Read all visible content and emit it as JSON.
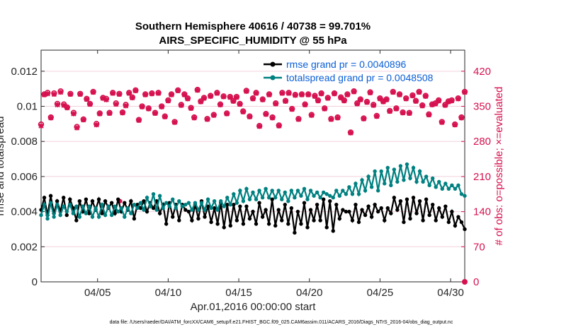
{
  "chart_data": {
    "type": "line",
    "title": "Southern Hemisphere 40616 / 40738 = 99.701%",
    "subtitle": "AIRS_SPECIFIC_HUMIDITY @ 55 hPa",
    "xlabel": "Apr.01,2016 00:00:00 start",
    "ylabel": "rmse and totalspread",
    "y2label": "# of obs: o=possible; ×=evaluated",
    "xlim": [
      1,
      31
    ],
    "ylim": [
      0,
      0.0132
    ],
    "y2lim": [
      0,
      462
    ],
    "x_tick_values": [
      5,
      10,
      15,
      20,
      25,
      30
    ],
    "x_tick_labels": [
      "04/05",
      "04/10",
      "04/15",
      "04/20",
      "04/25",
      "04/30"
    ],
    "y_ticks": [
      0,
      0.002,
      0.004,
      0.006,
      0.008,
      0.01,
      0.012
    ],
    "y_tick_labels": [
      "0",
      "0.002",
      "0.004",
      "0.006",
      "0.008",
      "0.01",
      "0.012"
    ],
    "y2_ticks": [
      0,
      70,
      140,
      210,
      280,
      350,
      420
    ],
    "y2_tick_labels": [
      "0",
      "70",
      "140",
      "210",
      "280",
      "350",
      "420"
    ],
    "grid": true,
    "legend_position": "top-right",
    "series": [
      {
        "name": "rmse grand pr = 0.0040896",
        "color": "#000000",
        "values": [
          0.0041,
          0.0048,
          0.0038,
          0.0049,
          0.0039,
          0.0046,
          0.004,
          0.0048,
          0.0038,
          0.0047,
          0.0042,
          0.0035,
          0.0046,
          0.004,
          0.0047,
          0.0039,
          0.0046,
          0.0041,
          0.0047,
          0.0039,
          0.0046,
          0.0042,
          0.0045,
          0.0039,
          0.0047,
          0.004,
          0.0045,
          0.0041,
          0.0046,
          0.0036,
          0.0044,
          0.0042,
          0.0046,
          0.004,
          0.0045,
          0.0042,
          0.0046,
          0.0039,
          0.0044,
          0.0033,
          0.0045,
          0.0037,
          0.0044,
          0.0035,
          0.0044,
          0.0041,
          0.004,
          0.0035,
          0.0044,
          0.0036,
          0.0046,
          0.0037,
          0.0043,
          0.0034,
          0.0042,
          0.0033,
          0.0045,
          0.0031,
          0.0044,
          0.0032,
          0.0044,
          0.0035,
          0.0043,
          0.0033,
          0.0043,
          0.0036,
          0.004,
          0.0033,
          0.0045,
          0.0037,
          0.0041,
          0.0033,
          0.0047,
          0.0032,
          0.0041,
          0.0035,
          0.0044,
          0.0033,
          0.0042,
          0.0028,
          0.004,
          0.0033,
          0.0045,
          0.0031,
          0.0041,
          0.0035,
          0.0044,
          0.0035,
          0.0047,
          0.0031,
          0.0046,
          0.0029,
          0.0044,
          0.0036,
          0.0041,
          0.004,
          0.004,
          0.0035,
          0.0044,
          0.0034,
          0.0041,
          0.0038,
          0.0043,
          0.0037,
          0.0044,
          0.004,
          0.0042,
          0.0035,
          0.0042,
          0.0039,
          0.0048,
          0.0041,
          0.0046,
          0.0034,
          0.0047,
          0.0036,
          0.0048,
          0.0039,
          0.0046,
          0.0035,
          0.0047,
          0.0038,
          0.0044,
          0.0035,
          0.0042,
          0.0037,
          0.0043,
          0.0034,
          0.004,
          0.0032,
          0.0037,
          0.0034,
          0.003
        ]
      },
      {
        "name": "totalspread grand pr = 0.0048508",
        "color": "#008080",
        "values": [
          0.0038,
          0.0044,
          0.0036,
          0.0045,
          0.0037,
          0.0044,
          0.0038,
          0.0043,
          0.004,
          0.0044,
          0.0039,
          0.0043,
          0.0037,
          0.0043,
          0.0039,
          0.0043,
          0.0037,
          0.0042,
          0.0037,
          0.0044,
          0.0038,
          0.0043,
          0.0038,
          0.0043,
          0.004,
          0.0042,
          0.0037,
          0.0042,
          0.0039,
          0.0044,
          0.0042,
          0.0045,
          0.0041,
          0.0048,
          0.0043,
          0.005,
          0.0041,
          0.0049,
          0.0042,
          0.0045,
          0.0043,
          0.0047,
          0.0042,
          0.0046,
          0.0043,
          0.0044,
          0.0045,
          0.0041,
          0.0045,
          0.0041,
          0.0045,
          0.0041,
          0.0047,
          0.0042,
          0.0046,
          0.0041,
          0.0046,
          0.0043,
          0.0048,
          0.0044,
          0.005,
          0.0045,
          0.0052,
          0.0046,
          0.0053,
          0.0047,
          0.0051,
          0.0047,
          0.0052,
          0.0048,
          0.0053,
          0.0048,
          0.0052,
          0.0048,
          0.0052,
          0.0047,
          0.0051,
          0.0046,
          0.0052,
          0.0048,
          0.0052,
          0.0049,
          0.0053,
          0.0047,
          0.0052,
          0.0049,
          0.0051,
          0.0048,
          0.0051,
          0.005,
          0.0049,
          0.0048,
          0.0052,
          0.0049,
          0.0052,
          0.005,
          0.0054,
          0.005,
          0.0056,
          0.005,
          0.0058,
          0.0052,
          0.006,
          0.0054,
          0.0063,
          0.0052,
          0.0063,
          0.0056,
          0.0065,
          0.0055,
          0.0064,
          0.0057,
          0.0066,
          0.0058,
          0.0067,
          0.0059,
          0.0065,
          0.0057,
          0.0063,
          0.0057,
          0.006,
          0.0055,
          0.0059,
          0.0054,
          0.0057,
          0.0053,
          0.0056,
          0.0053,
          0.0055,
          0.0053,
          0.0055,
          0.005,
          0.0049
        ]
      }
    ],
    "obs_counts": {
      "color": "#d6114f",
      "axis": "right",
      "possible": [
        314,
        374,
        377,
        328,
        376,
        355,
        380,
        354,
        348,
        375,
        337,
        309,
        375,
        324,
        365,
        355,
        379,
        315,
        336,
        367,
        365,
        337,
        377,
        356,
        375,
        338,
        353,
        377,
        368,
        382,
        323,
        350,
        374,
        346,
        376,
        337,
        377,
        350,
        330,
        362,
        374,
        319,
        382,
        353,
        374,
        366,
        347,
        328,
        383,
        360,
        367,
        325,
        371,
        333,
        377,
        354,
        370,
        336,
        369,
        361,
        369,
        355,
        340,
        381,
        330,
        366,
        377,
        311,
        364,
        335,
        374,
        328,
        356,
        312,
        377,
        361,
        377,
        345,
        373,
        325,
        374,
        354,
        374,
        333,
        371,
        362,
        376,
        346,
        367,
        325,
        376,
        328,
        368,
        362,
        374,
        298,
        380,
        356,
        364,
        326,
        359,
        378,
        353,
        331,
        366,
        360,
        364,
        341,
        379,
        346,
        374,
        338,
        366,
        337,
        372,
        361,
        379,
        352,
        371,
        334,
        354,
        356,
        362,
        319,
        353,
        360,
        362,
        314,
        366,
        328,
        379
      ],
      "evaluated": [
        311,
        373,
        375,
        327,
        374,
        353,
        378,
        352,
        347,
        374,
        335,
        307,
        374,
        323,
        364,
        354,
        378,
        313,
        335,
        366,
        363,
        336,
        376,
        354,
        374,
        337,
        351,
        376,
        367,
        381,
        322,
        349,
        373,
        345,
        375,
        336,
        376,
        349,
        329,
        361,
        373,
        318,
        381,
        352,
        373,
        365,
        346,
        327,
        382,
        359,
        366,
        324,
        370,
        332,
        376,
        353,
        369,
        335,
        368,
        360,
        368,
        354,
        339,
        380,
        329,
        365,
        376,
        310,
        363,
        334,
        373,
        327,
        355,
        311,
        376,
        360,
        376,
        344,
        372,
        324,
        373,
        353,
        373,
        332,
        370,
        361,
        375,
        345,
        366,
        324,
        375,
        327,
        367,
        361,
        373,
        297,
        379,
        355,
        363,
        325,
        358,
        377,
        352,
        330,
        365,
        359,
        363,
        340,
        378,
        345,
        373,
        337,
        365,
        336,
        371,
        360,
        378,
        351,
        370,
        333,
        353,
        355,
        361,
        318,
        352,
        359,
        361,
        313,
        365,
        327,
        378
      ]
    }
  },
  "footer": "data file: /Users/raeder/DAI/ATM_forcXX/CAM6_setup/f.e21.FHIST_BGC.f09_025.CAM6assim.011/ACARS_2016/Diags_NTrS_2016-04/obs_diag_output.nc"
}
